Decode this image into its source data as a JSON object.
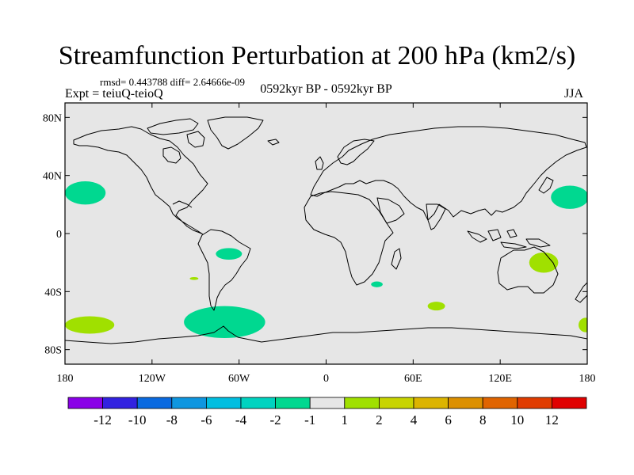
{
  "header": {
    "title": "Streamfunction Perturbation at 200 hPa (km2/s)",
    "stats": "rmsd= 0.443788 diff= 2.64666e-09",
    "experiment": "Expt = teiuQ-teioQ",
    "period": "0592kyr BP - 0592kyr BP",
    "season": "JJA"
  },
  "map": {
    "projection": "cylindrical-equidistant",
    "lon_range": [
      -180,
      180
    ],
    "lat_range": [
      -90,
      90
    ],
    "background_color": "#e6e6e6",
    "coast_color": "#000000",
    "y_ticks": [
      {
        "lat": 80,
        "label": "80N"
      },
      {
        "lat": 40,
        "label": "40N"
      },
      {
        "lat": 0,
        "label": "0"
      },
      {
        "lat": -40,
        "label": "40S"
      },
      {
        "lat": -80,
        "label": "80S"
      }
    ],
    "x_ticks": [
      {
        "lon": -180,
        "label": "180"
      },
      {
        "lon": -120,
        "label": "120W"
      },
      {
        "lon": -60,
        "label": "60W"
      },
      {
        "lon": 0,
        "label": "0"
      },
      {
        "lon": 60,
        "label": "60E"
      },
      {
        "lon": 120,
        "label": "120E"
      },
      {
        "lon": 180,
        "label": "180"
      }
    ],
    "anomalies": [
      {
        "name": "central-pacific-north-negative",
        "lon": -166,
        "lat": 28,
        "dlon": 14,
        "dlat": 8,
        "level": "-2 to -1",
        "color": "#00d890"
      },
      {
        "name": "western-pacific-north-negative",
        "lon": 168,
        "lat": 25,
        "dlon": 13,
        "dlat": 8,
        "level": "-2 to -1",
        "color": "#00d890"
      },
      {
        "name": "south-america-negative",
        "lon": -67,
        "lat": -14,
        "dlon": 9,
        "dlat": 4,
        "level": "-2 to -1",
        "color": "#00d890"
      },
      {
        "name": "southeast-pacific-small-negative",
        "lon": -91,
        "lat": -31,
        "dlon": 3,
        "dlat": 1,
        "level": "1 to 2",
        "color": "#a0e000"
      },
      {
        "name": "drake-passage-negative",
        "lon": -70,
        "lat": -61,
        "dlon": 28,
        "dlat": 11,
        "level": "-2 to -1",
        "color": "#00d890"
      },
      {
        "name": "south-indian-small-negative",
        "lon": 35,
        "lat": -35,
        "dlon": 4,
        "dlat": 2,
        "level": "-2 to -1",
        "color": "#00d890"
      },
      {
        "name": "south-indian-positive",
        "lon": 76,
        "lat": -50,
        "dlon": 6,
        "dlat": 3,
        "level": "1 to 2",
        "color": "#a0e000"
      },
      {
        "name": "australia-positive",
        "lon": 150,
        "lat": -20,
        "dlon": 10,
        "dlat": 7,
        "level": "1 to 2",
        "color": "#a0e000"
      },
      {
        "name": "southwest-pacific-positive",
        "lon": -163,
        "lat": -63,
        "dlon": 17,
        "dlat": 6,
        "level": "1 to 2",
        "color": "#a0e000"
      },
      {
        "name": "southeast-pacific-edge-positive",
        "lon": 179,
        "lat": -63,
        "dlon": 5,
        "dlat": 5,
        "level": "1 to 2",
        "color": "#a0e000"
      }
    ]
  },
  "colorbar": {
    "colors": [
      "#8a00e8",
      "#3222e0",
      "#0a6ae0",
      "#0e96e0",
      "#00bee0",
      "#00d3c0",
      "#00d890",
      "#e6e6e6",
      "#a0e000",
      "#c8d400",
      "#dcb400",
      "#dc9000",
      "#e06400",
      "#e03c00",
      "#e00000"
    ],
    "labels": [
      "-12",
      "-10",
      "-8",
      "-6",
      "-4",
      "-2",
      "-1",
      "1",
      "2",
      "4",
      "6",
      "8",
      "10",
      "12"
    ]
  }
}
